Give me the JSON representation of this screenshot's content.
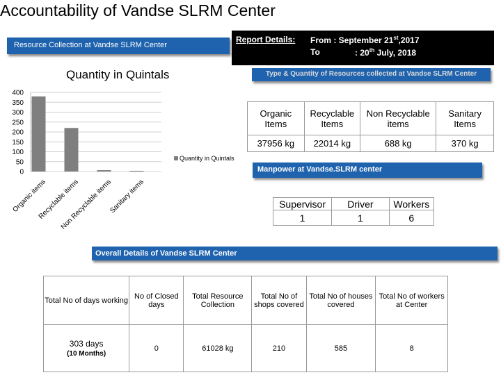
{
  "title": "Accountability of Vandse SLRM Center",
  "resource_banner": "Resource Collection at Vandse SLRM Center",
  "report": {
    "label": "Report Details:",
    "from_prefix": "From : September 21",
    "from_sup": "st",
    "from_suffix": ",2017",
    "to_prefix": "To",
    "to_colon": ": 20",
    "to_sup": "th",
    "to_suffix": " July, 2018"
  },
  "type_banner": "Type & Quantity of Resources collected at Vandse SLRM Center",
  "type_table": {
    "headers": [
      "Organic Items",
      "Recyclable Items",
      "Non Recyclable items",
      "Sanitary Items"
    ],
    "values": [
      "37956 kg",
      "22014 kg",
      "688 kg",
      "370 kg"
    ]
  },
  "manpower_banner": "Manpower at Vandse.SLRM center",
  "manpower_table": {
    "headers": [
      "Supervisor",
      "Driver",
      "Workers"
    ],
    "values": [
      "1",
      "1",
      "6"
    ]
  },
  "overall_banner": "Overall Details of Vandse SLRM Center",
  "overall_table": {
    "headers": [
      "Total No of days working",
      "No of Closed days",
      "Total Resource Collection",
      "Total No of shops covered",
      "Total No of houses covered",
      "Total No of workers at Center"
    ],
    "days_value": "303 days",
    "days_note": "(10 Months)",
    "values": [
      "0",
      "61028 kg",
      "210",
      "585",
      "8"
    ]
  },
  "chart_data": {
    "type": "bar",
    "title": "Quantity in Quintals",
    "categories": [
      "Organic items",
      "Recyclable items",
      "Non Recyclable items",
      "Sanitary items"
    ],
    "series": [
      {
        "name": "Quantity in Quintals",
        "values": [
          379.56,
          220.14,
          6.88,
          3.7
        ]
      }
    ],
    "ylim": [
      0,
      400
    ],
    "yticks": [
      "0",
      "50",
      "100",
      "150",
      "200",
      "250",
      "300",
      "350",
      "400"
    ],
    "xlabel": "",
    "ylabel": "",
    "grid": true,
    "legend": "right",
    "bar_color": "#7f7f7f"
  }
}
